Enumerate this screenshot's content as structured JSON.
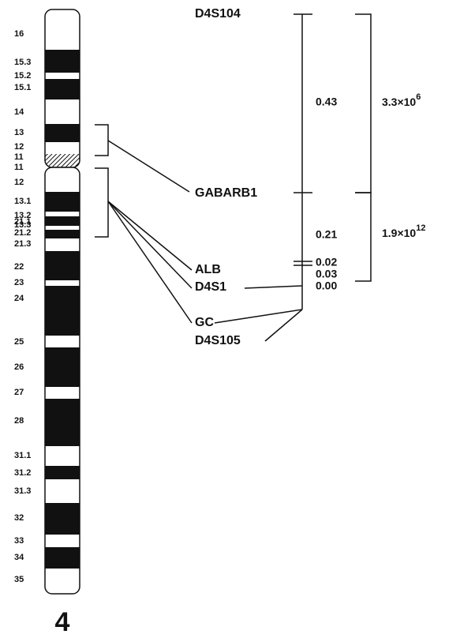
{
  "chromosome": {
    "number": "4",
    "bands": [
      "16",
      "15.3",
      "15.2",
      "15.1",
      "14",
      "13",
      "12",
      "11",
      "11",
      "12",
      "13.1",
      "13.2",
      "13.3",
      "21.1",
      "21.2",
      "21.3",
      "22",
      "23",
      "24",
      "25",
      "26",
      "27",
      "28",
      "31.1",
      "31.2",
      "31.3",
      "32",
      "33",
      "34",
      "35"
    ]
  },
  "markers": [
    "D4S104",
    "GABARB1",
    "ALB",
    "D4S1",
    "GC",
    "D4S105"
  ],
  "distances": [
    "0.43",
    "0.21",
    "0.02",
    "0.03",
    "0.00"
  ],
  "odds": [
    {
      "base": "3.3×10",
      "exponent": "6"
    },
    {
      "base": "1.9×10",
      "exponent": "12"
    }
  ]
}
